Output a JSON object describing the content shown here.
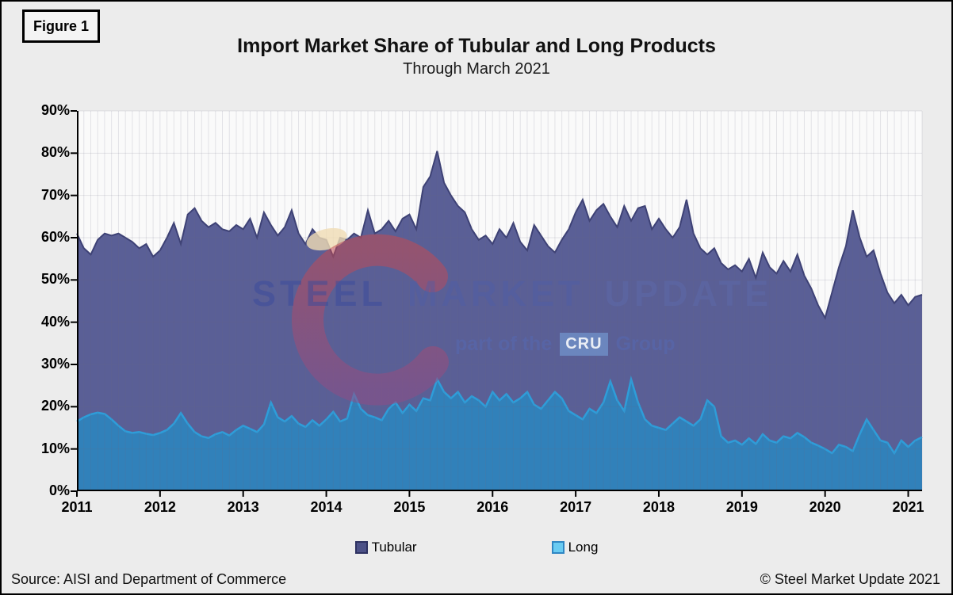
{
  "figure_label": "Figure 1",
  "title": "Import Market Share of Tubular and Long Products",
  "subtitle": "Through March 2021",
  "watermark": {
    "word1": "STEEL",
    "word2": "MARKET",
    "word3": "UPDATE",
    "tagline_prefix": "part of the",
    "tagline_box": "CRU",
    "tagline_suffix": "Group"
  },
  "legend": [
    {
      "label": "Tubular",
      "fill": "#4C5187",
      "border": "#2E3261"
    },
    {
      "label": "Long",
      "fill": "#69CBF2",
      "border": "#2F86C3"
    }
  ],
  "footer": {
    "source": "Source: AISI and Department of Commerce",
    "copyright": "© Steel Market Update 2021"
  },
  "colors": {
    "canvas": "#ECECEC",
    "plot_bg": "#FAFAFA",
    "gridline_overlay": "rgba(105,105,130,0.16)",
    "axis": "#000000"
  },
  "chart_data": {
    "type": "area",
    "stacked": true,
    "title": "Import Market Share of Tubular and Long Products",
    "subtitle": "Through March 2021",
    "xlabel": "",
    "ylabel": "",
    "x_start": "2011-01",
    "x_end": "2021-03",
    "x_frequency": "monthly",
    "xticks": [
      "2011",
      "2012",
      "2013",
      "2014",
      "2015",
      "2016",
      "2017",
      "2018",
      "2019",
      "2020",
      "2021"
    ],
    "yticks": [
      "0%",
      "10%",
      "20%",
      "30%",
      "40%",
      "50%",
      "60%",
      "70%",
      "80%",
      "90%"
    ],
    "ylim": [
      0,
      90
    ],
    "grid": true,
    "legend_position": "bottom",
    "unit": "percent market share",
    "series": [
      {
        "name": "Long",
        "area_color": "#3181BA",
        "edge_color": "#2E9DD9",
        "values": [
          16.5,
          17.5,
          18.2,
          18.6,
          18.3,
          17.0,
          15.5,
          14.2,
          13.8,
          14.0,
          13.6,
          13.3,
          13.8,
          14.5,
          16.0,
          18.5,
          16.0,
          14.0,
          13.0,
          12.6,
          13.5,
          14.0,
          13.2,
          14.5,
          15.5,
          14.8,
          14.0,
          15.8,
          21.0,
          17.5,
          16.5,
          17.8,
          16.0,
          15.2,
          16.8,
          15.5,
          17.0,
          18.8,
          16.5,
          17.2,
          23.0,
          19.5,
          18.0,
          17.5,
          16.8,
          19.5,
          21.0,
          18.5,
          20.5,
          19.0,
          22.0,
          21.5,
          26.5,
          23.5,
          22.0,
          23.5,
          21.0,
          22.5,
          21.5,
          20.0,
          23.5,
          21.5,
          23.0,
          21.0,
          22.0,
          23.5,
          20.5,
          19.5,
          21.5,
          23.5,
          22.0,
          19.0,
          18.0,
          17.0,
          19.5,
          18.5,
          21.0,
          26.0,
          21.5,
          19.0,
          26.5,
          21.0,
          17.0,
          15.5,
          15.0,
          14.5,
          16.0,
          17.5,
          16.5,
          15.5,
          17.0,
          21.5,
          20.0,
          13.0,
          11.5,
          12.0,
          11.0,
          12.5,
          11.2,
          13.5,
          12.0,
          11.5,
          13.0,
          12.5,
          13.8,
          12.8,
          11.5,
          10.8,
          10.0,
          9.0,
          11.0,
          10.5,
          9.5,
          13.5,
          17.0,
          14.5,
          12.0,
          11.5,
          9.0,
          12.0,
          10.5,
          12.0,
          12.8
        ]
      },
      {
        "name": "Tubular",
        "area_color": "#5A5F96",
        "edge_color": "#3D4175",
        "values": [
          44.5,
          40.0,
          37.8,
          40.9,
          42.7,
          43.5,
          45.5,
          45.8,
          45.2,
          43.5,
          44.9,
          42.2,
          43.2,
          45.5,
          47.5,
          40.0,
          49.5,
          53.0,
          51.0,
          49.9,
          50.0,
          48.0,
          48.3,
          48.5,
          46.5,
          49.7,
          46.0,
          50.2,
          42.0,
          43.0,
          46.0,
          48.7,
          45.0,
          43.3,
          45.2,
          44.5,
          42.5,
          36.7,
          43.5,
          42.3,
          38.0,
          40.5,
          48.5,
          43.5,
          45.2,
          44.5,
          40.5,
          46.0,
          45.0,
          43.0,
          50.0,
          53.0,
          54.0,
          49.5,
          48.0,
          44.0,
          45.0,
          39.5,
          38.0,
          40.5,
          35.0,
          40.5,
          37.0,
          42.5,
          37.0,
          33.5,
          42.5,
          41.0,
          36.5,
          33.0,
          37.5,
          43.0,
          48.0,
          52.0,
          44.5,
          48.0,
          47.0,
          39.0,
          41.0,
          48.5,
          37.5,
          46.0,
          50.5,
          46.5,
          49.5,
          47.5,
          44.0,
          45.0,
          52.5,
          45.5,
          40.5,
          34.5,
          37.5,
          41.0,
          41.0,
          41.5,
          41.0,
          42.5,
          39.3,
          43.0,
          41.0,
          40.0,
          41.5,
          39.5,
          42.2,
          38.2,
          36.5,
          33.2,
          31.0,
          38.0,
          42.0,
          47.5,
          57.0,
          46.5,
          38.5,
          42.5,
          39.5,
          35.5,
          35.5,
          34.5,
          33.5,
          34.0,
          33.7
        ]
      }
    ]
  }
}
